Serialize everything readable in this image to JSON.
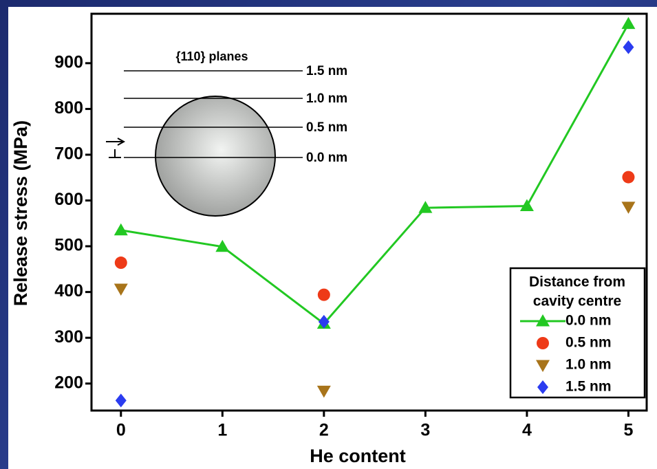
{
  "chart_data": {
    "type": "line",
    "x_label": "He content",
    "y_label": "Release stress (MPa)",
    "x": [
      0,
      1,
      2,
      3,
      4,
      5
    ],
    "xlim": [
      -0.29,
      5.18
    ],
    "xticks": [
      0,
      1,
      2,
      3,
      4,
      5
    ],
    "ylim": [
      141,
      1008
    ],
    "yticks": [
      200,
      300,
      400,
      500,
      600,
      700,
      800,
      900
    ],
    "legend_title": [
      "Distance from",
      "cavity centre"
    ],
    "legend_position": "lower right",
    "series": [
      {
        "name": "0.0 nm",
        "color": "#22c822",
        "marker": "triangle-up",
        "line": true,
        "values": [
          535,
          499,
          331,
          584,
          588,
          986
        ]
      },
      {
        "name": "0.5 nm",
        "color": "#ee3a18",
        "marker": "circle",
        "line": false,
        "values": [
          464,
          null,
          394,
          null,
          null,
          651
        ]
      },
      {
        "name": "1.0 nm",
        "color": "#a8741a",
        "marker": "triangle-down",
        "line": false,
        "values": [
          407,
          null,
          184,
          null,
          null,
          586
        ]
      },
      {
        "name": "1.5 nm",
        "color": "#2b3cf0",
        "marker": "diamond",
        "line": false,
        "values": [
          163,
          null,
          335,
          null,
          null,
          935
        ]
      }
    ],
    "inset": {
      "title": "{110} planes",
      "plane_labels": [
        "1.5 nm",
        "1.0 nm",
        "0.5 nm",
        "0.0 nm"
      ]
    }
  }
}
